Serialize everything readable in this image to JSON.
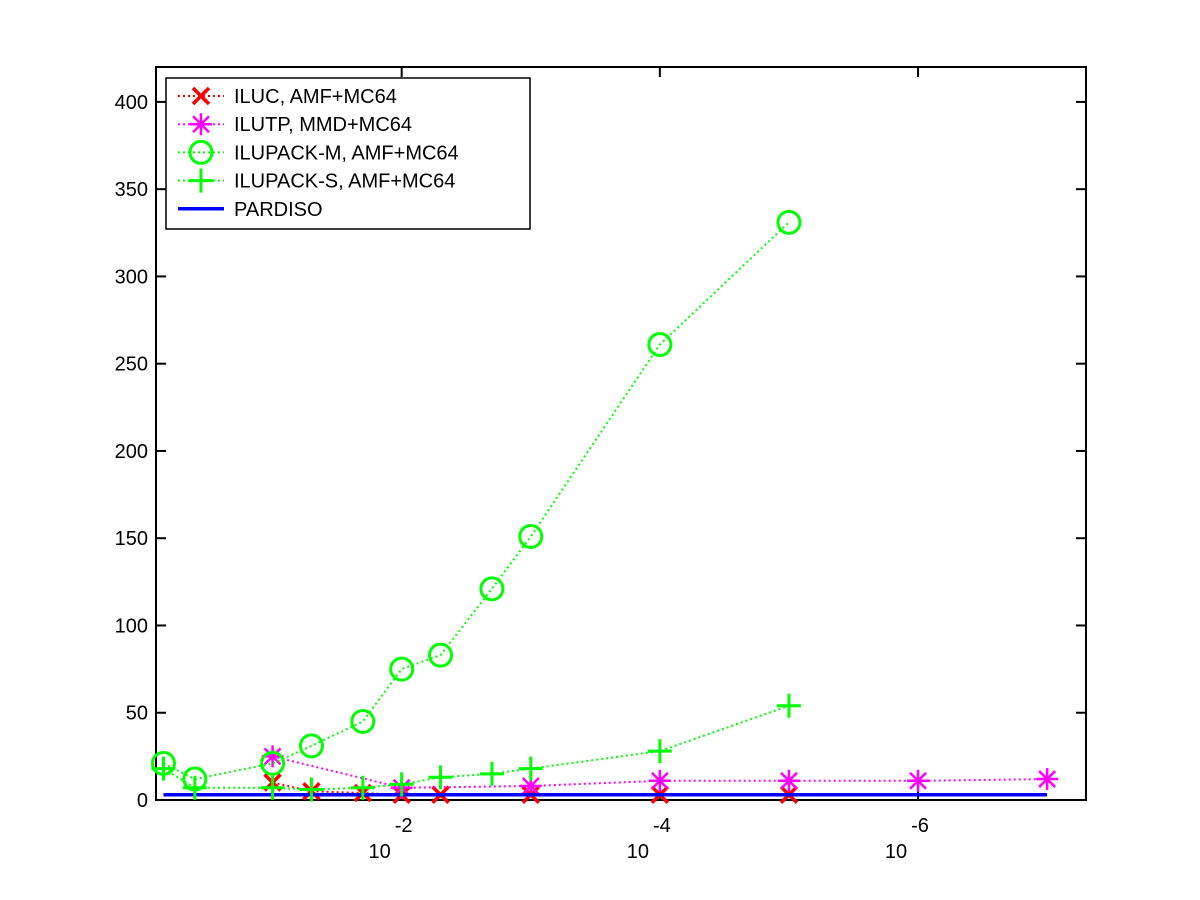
{
  "chart_data": {
    "type": "line",
    "title": "",
    "xlabel": "",
    "ylabel": "",
    "x_scale": "log",
    "x_reversed": true,
    "xlim": [
      0.8,
      5e-08
    ],
    "ylim": [
      0,
      420
    ],
    "grid": false,
    "legend_position": "top-left",
    "y_ticks": [
      0,
      50,
      100,
      150,
      200,
      250,
      300,
      350,
      400
    ],
    "x_ticks": [
      {
        "value": 0.01,
        "base": "10",
        "exponent": "-2"
      },
      {
        "value": 0.0001,
        "base": "10",
        "exponent": "-4"
      },
      {
        "value": 1e-06,
        "base": "10",
        "exponent": "-6"
      }
    ],
    "series": [
      {
        "name": "ILUC, AMF+MC64",
        "color": "#ff0000",
        "marker": "x",
        "line_style": "dotted",
        "x": [
          0.1,
          0.05,
          0.02,
          0.01,
          0.005,
          0.001,
          0.0001,
          1e-05
        ],
        "y": [
          10,
          5,
          4,
          3,
          3,
          3,
          3,
          3
        ]
      },
      {
        "name": "ILUTP, MMD+MC64",
        "color": "#ff00ff",
        "marker": "asterisk",
        "line_style": "dotted",
        "x": [
          0.1,
          0.01,
          0.001,
          0.0001,
          1e-05,
          1e-06,
          1e-07
        ],
        "y": [
          25,
          7,
          8,
          11,
          11,
          11,
          12
        ]
      },
      {
        "name": "ILUPACK-M, AMF+MC64",
        "color": "#00ff00",
        "marker": "circle",
        "line_style": "dotted",
        "x": [
          0.7,
          0.4,
          0.1,
          0.05,
          0.02,
          0.01,
          0.005,
          0.002,
          0.001,
          0.0001,
          1e-05
        ],
        "y": [
          21,
          12,
          21,
          31,
          45,
          75,
          83,
          121,
          151,
          261,
          331
        ]
      },
      {
        "name": "ILUPACK-S, AMF+MC64",
        "color": "#00ff00",
        "marker": "plus",
        "line_style": "dotted",
        "x": [
          0.7,
          0.4,
          0.1,
          0.05,
          0.02,
          0.01,
          0.005,
          0.002,
          0.001,
          0.0001,
          1e-05
        ],
        "y": [
          18,
          7,
          7,
          6,
          7,
          9,
          13,
          15,
          18,
          28,
          54
        ]
      },
      {
        "name": "PARDISO",
        "color": "#0000ff",
        "marker": "none",
        "line_style": "solid",
        "x": [
          0.7,
          1e-07
        ],
        "y": [
          3,
          3
        ]
      }
    ]
  }
}
